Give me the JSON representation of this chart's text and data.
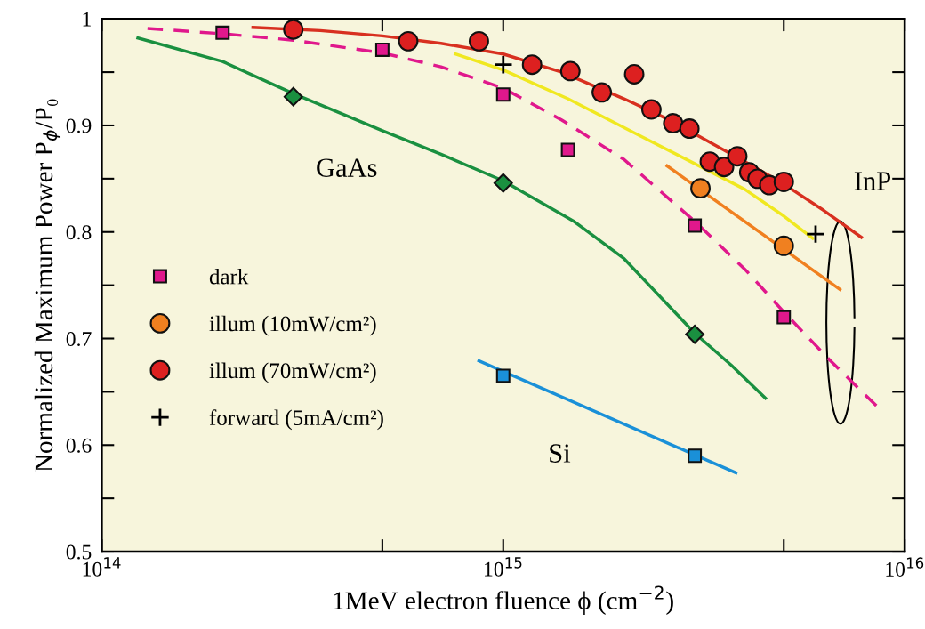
{
  "chart_data": {
    "type": "scatter",
    "xlabel": "1MeV electron fluence ϕ (cm$^{−2}$)",
    "ylabel": "Normalized Maximum Power P$_{ϕ}$/P₀",
    "log": "x",
    "xlim": [
      100000000000000.0,
      1e+16
    ],
    "xticks": [
      {
        "value": 100000000000000.0,
        "label": "10$^{14}$"
      },
      {
        "value": 500000000000000.0,
        "label": null
      },
      {
        "value": 1000000000000000.0,
        "label": "10$^{15}$"
      },
      {
        "value": 5000000000000000.0,
        "label": null
      },
      {
        "value": 1e+16,
        "label": "10$^{16}$"
      }
    ],
    "ylim": [
      0.5,
      1.0
    ],
    "yticks": [
      {
        "value": 0.5,
        "label": "0.5"
      },
      {
        "value": 0.55,
        "label": null
      },
      {
        "value": 0.6,
        "label": "0.6"
      },
      {
        "value": 0.65,
        "label": null
      },
      {
        "value": 0.7,
        "label": "0.7"
      },
      {
        "value": 0.75,
        "label": null
      },
      {
        "value": 0.8,
        "label": "0.8"
      },
      {
        "value": 0.85,
        "label": null
      },
      {
        "value": 0.9,
        "label": "0.9"
      },
      {
        "value": 0.95,
        "label": null
      },
      {
        "value": 1.0,
        "label": "1"
      }
    ],
    "grid": false,
    "legend": "left",
    "series": [
      {
        "type": "line",
        "color": "#e0188c",
        "line_style": "dashed",
        "x": [
          130000000000000.0,
          200000000000000.0,
          300000000000000.0,
          500000000000000.0,
          700000000000000.0,
          1000000000000000.0,
          1400000000000000.0,
          2000000000000000.0,
          3000000000000000.0,
          4000000000000000.0,
          5000000000000000.0,
          6500000000000000.0,
          8600000000000000.0
        ],
        "values": [
          0.991,
          0.986,
          0.98,
          0.968,
          0.955,
          0.935,
          0.905,
          0.868,
          0.81,
          0.765,
          0.725,
          0.68,
          0.635
        ]
      },
      {
        "type": "line",
        "color": "#1a9040",
        "x": [
          123000000000000.0,
          200000000000000.0,
          300000000000000.0,
          500000000000000.0,
          700000000000000.0,
          1000000000000000.0,
          1500000000000000.0,
          2000000000000000.0,
          3000000000000000.0,
          3700000000000000.0,
          4500000000000000.0
        ],
        "values": [
          0.982,
          0.96,
          0.93,
          0.895,
          0.873,
          0.848,
          0.81,
          0.775,
          0.705,
          0.675,
          0.644
        ]
      },
      {
        "type": "line",
        "color": "#1a90d8",
        "x": [
          870000000000000.0,
          3800000000000000.0
        ],
        "values": [
          0.679,
          0.574
        ]
      },
      {
        "type": "line",
        "color": "#d83020",
        "x": [
          238000000000000.0,
          350000000000000.0,
          500000000000000.0,
          700000000000000.0,
          1000000000000000.0,
          1400000000000000.0,
          2000000000000000.0,
          2500000000000000.0,
          3000000000000000.0,
          4000000000000000.0,
          5000000000000000.0,
          6300000000000000.0,
          7800000000000000.0
        ],
        "values": [
          0.992,
          0.989,
          0.984,
          0.977,
          0.967,
          0.95,
          0.925,
          0.908,
          0.892,
          0.866,
          0.845,
          0.82,
          0.795
        ]
      },
      {
        "type": "line",
        "color": "#f0e820",
        "x": [
          760000000000000.0,
          1000000000000000.0,
          1450000000000000.0,
          2200000000000000.0,
          4000000000000000.0,
          5000000000000000.0,
          5900000000000000.0
        ],
        "values": [
          0.967,
          0.952,
          0.925,
          0.89,
          0.84,
          0.815,
          0.794
        ]
      },
      {
        "type": "line",
        "color": "#f08020",
        "x": [
          2560000000000000.0,
          6900000000000000.0
        ],
        "values": [
          0.862,
          0.746
        ]
      },
      {
        "name": "dark",
        "marker": "square",
        "color": "#e0188c",
        "x": [
          200000000000000.0,
          500000000000000.0,
          1000000000000000.0,
          1450000000000000.0,
          3000000000000000.0,
          5000000000000000.0
        ],
        "values": [
          0.987,
          0.971,
          0.929,
          0.877,
          0.806,
          0.72
        ]
      },
      {
        "name": "illum (10mW/cm²)",
        "marker": "circle",
        "color": "#f08020",
        "x": [
          3100000000000000.0,
          5000000000000000.0
        ],
        "values": [
          0.841,
          0.787
        ]
      },
      {
        "name": "illum (70mW/cm²)",
        "marker": "circle",
        "color": "#dd2020",
        "x": [
          300000000000000.0,
          580000000000000.0,
          870000000000000.0,
          1180000000000000.0,
          1470000000000000.0,
          1760000000000000.0,
          2120000000000000.0,
          2340000000000000.0,
          2650000000000000.0,
          2910000000000000.0,
          3270000000000000.0,
          3550000000000000.0,
          3830000000000000.0,
          4100000000000000.0,
          4300000000000000.0,
          4600000000000000.0,
          5000000000000000.0
        ],
        "values": [
          0.99,
          0.979,
          0.979,
          0.957,
          0.951,
          0.931,
          0.948,
          0.915,
          0.902,
          0.897,
          0.866,
          0.861,
          0.871,
          0.856,
          0.85,
          0.844,
          0.847
        ]
      },
      {
        "name": "forward (5mA/cm²)",
        "marker": "cross",
        "color": "#000000",
        "x": [
          1000000000000000.0,
          6000000000000000.0
        ],
        "values": [
          0.957,
          0.798
        ]
      },
      {
        "marker": "diamond",
        "color": "#1a9040",
        "x": [
          300000000000000.0,
          1000000000000000.0,
          3000000000000000.0
        ],
        "values": [
          0.927,
          0.846,
          0.704
        ]
      },
      {
        "marker": "square",
        "color": "#1a90d8",
        "x": [
          1000000000000000.0,
          3000000000000000.0
        ],
        "values": [
          0.665,
          0.59
        ]
      }
    ],
    "annotations": [
      "GaAs",
      "InP",
      "Si"
    ]
  }
}
